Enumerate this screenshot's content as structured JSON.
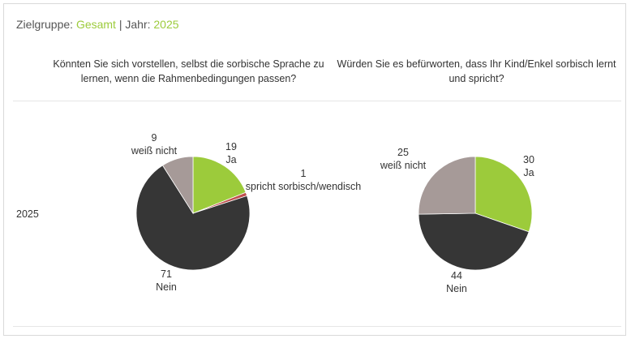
{
  "header": {
    "zielgruppe_label": "Zielgruppe:",
    "zielgruppe_value": "Gesamt",
    "separator": "|",
    "jahr_label": "Jahr:",
    "jahr_value": "2025"
  },
  "row_label": "2025",
  "colors": {
    "ja": "#9ccb3b",
    "nein": "#363636",
    "weiss_nicht": "#a69a98",
    "spricht": "#c0504d",
    "accent": "#9ccb3b"
  },
  "chart_data": [
    {
      "type": "pie",
      "title": "Könnten Sie sich vorstellen, selbst die sorbische Sprache zu lernen, wenn die Rahmenbedingungen passen?",
      "slices": [
        {
          "label": "Ja",
          "value": 19,
          "color": "#9ccb3b"
        },
        {
          "label": "spricht sorbisch/wendisch",
          "value": 1,
          "color": "#c0504d"
        },
        {
          "label": "Nein",
          "value": 71,
          "color": "#363636"
        },
        {
          "label": "weiß nicht",
          "value": 9,
          "color": "#a69a98"
        }
      ]
    },
    {
      "type": "pie",
      "title": "Würden Sie es befürworten, dass Ihr Kind/Enkel sorbisch lernt und spricht?",
      "slices": [
        {
          "label": "Ja",
          "value": 30,
          "color": "#9ccb3b"
        },
        {
          "label": "Nein",
          "value": 44,
          "color": "#363636"
        },
        {
          "label": "weiß nicht",
          "value": 25,
          "color": "#a69a98"
        }
      ]
    }
  ]
}
